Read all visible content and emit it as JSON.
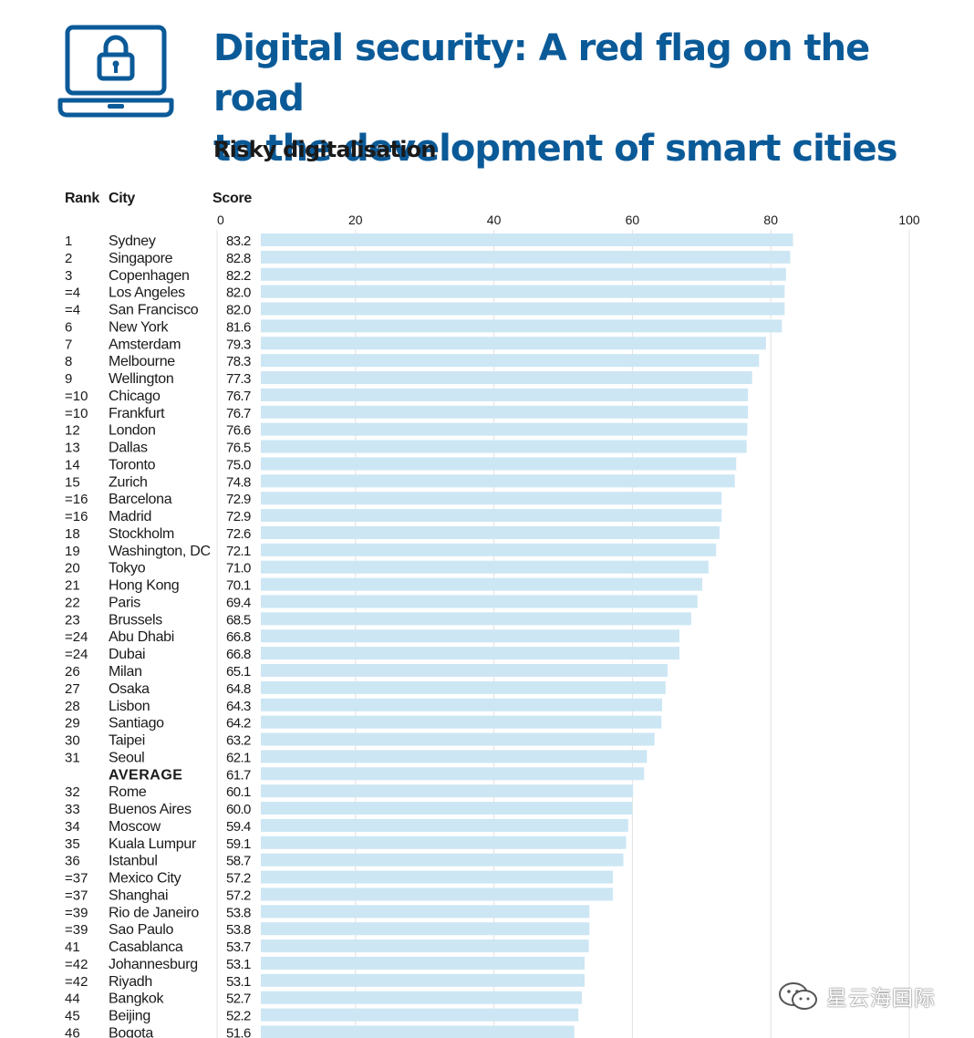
{
  "colors": {
    "brand": "#0b5a98",
    "bar": "#cce6f4",
    "grid": "#e2e2e2",
    "text": "#1a1a1a"
  },
  "icon": "laptop-lock-icon",
  "header": {
    "title_line1": "Digital security: A red flag on the road",
    "title_line2": "to the development of smart cities",
    "subtitle": "Risky digitalisation"
  },
  "columns": {
    "rank": "Rank",
    "city": "City",
    "score": "Score"
  },
  "watermark": {
    "text": "星云海国际",
    "icon": "wechat-icon"
  },
  "chart_data": {
    "type": "bar",
    "orientation": "horizontal",
    "title": "Risky digitalisation",
    "xlabel": "Score",
    "xlim": [
      0,
      100
    ],
    "xticks": [
      0,
      20,
      40,
      60,
      80,
      100
    ],
    "grid": true,
    "rows": [
      {
        "rank": "1",
        "city": "Sydney",
        "score": "83.2"
      },
      {
        "rank": "2",
        "city": "Singapore",
        "score": "82.8"
      },
      {
        "rank": "3",
        "city": "Copenhagen",
        "score": "82.2"
      },
      {
        "rank": "=4",
        "city": "Los Angeles",
        "score": "82.0"
      },
      {
        "rank": "=4",
        "city": "San Francisco",
        "score": "82.0"
      },
      {
        "rank": "6",
        "city": "New York",
        "score": "81.6"
      },
      {
        "rank": "7",
        "city": "Amsterdam",
        "score": "79.3"
      },
      {
        "rank": "8",
        "city": "Melbourne",
        "score": "78.3"
      },
      {
        "rank": "9",
        "city": "Wellington",
        "score": "77.3"
      },
      {
        "rank": "=10",
        "city": "Chicago",
        "score": "76.7"
      },
      {
        "rank": "=10",
        "city": "Frankfurt",
        "score": "76.7"
      },
      {
        "rank": "12",
        "city": "London",
        "score": "76.6"
      },
      {
        "rank": "13",
        "city": "Dallas",
        "score": "76.5"
      },
      {
        "rank": "14",
        "city": "Toronto",
        "score": "75.0"
      },
      {
        "rank": "15",
        "city": "Zurich",
        "score": "74.8"
      },
      {
        "rank": "=16",
        "city": "Barcelona",
        "score": "72.9"
      },
      {
        "rank": "=16",
        "city": "Madrid",
        "score": "72.9"
      },
      {
        "rank": "18",
        "city": "Stockholm",
        "score": "72.6"
      },
      {
        "rank": "19",
        "city": "Washington, DC",
        "score": "72.1"
      },
      {
        "rank": "20",
        "city": "Tokyo",
        "score": "71.0"
      },
      {
        "rank": "21",
        "city": "Hong Kong",
        "score": "70.1"
      },
      {
        "rank": "22",
        "city": "Paris",
        "score": "69.4"
      },
      {
        "rank": "23",
        "city": "Brussels",
        "score": "68.5"
      },
      {
        "rank": "=24",
        "city": "Abu Dhabi",
        "score": "66.8"
      },
      {
        "rank": "=24",
        "city": "Dubai",
        "score": "66.8"
      },
      {
        "rank": "26",
        "city": "Milan",
        "score": "65.1"
      },
      {
        "rank": "27",
        "city": "Osaka",
        "score": "64.8"
      },
      {
        "rank": "28",
        "city": "Lisbon",
        "score": "64.3"
      },
      {
        "rank": "29",
        "city": "Santiago",
        "score": "64.2"
      },
      {
        "rank": "30",
        "city": "Taipei",
        "score": "63.2"
      },
      {
        "rank": "31",
        "city": "Seoul",
        "score": "62.1"
      },
      {
        "rank": "",
        "city": "AVERAGE",
        "score": "61.7",
        "average": true
      },
      {
        "rank": "32",
        "city": "Rome",
        "score": "60.1"
      },
      {
        "rank": "33",
        "city": "Buenos Aires",
        "score": "60.0"
      },
      {
        "rank": "34",
        "city": "Moscow",
        "score": "59.4"
      },
      {
        "rank": "35",
        "city": "Kuala Lumpur",
        "score": "59.1"
      },
      {
        "rank": "36",
        "city": "Istanbul",
        "score": "58.7"
      },
      {
        "rank": "=37",
        "city": "Mexico City",
        "score": "57.2"
      },
      {
        "rank": "=37",
        "city": "Shanghai",
        "score": "57.2"
      },
      {
        "rank": "=39",
        "city": "Rio de Janeiro",
        "score": "53.8"
      },
      {
        "rank": "=39",
        "city": "Sao Paulo",
        "score": "53.8"
      },
      {
        "rank": "41",
        "city": "Casablanca",
        "score": "53.7"
      },
      {
        "rank": "=42",
        "city": "Johannesburg",
        "score": "53.1"
      },
      {
        "rank": "=42",
        "city": "Riyadh",
        "score": "53.1"
      },
      {
        "rank": "44",
        "city": "Bangkok",
        "score": "52.7"
      },
      {
        "rank": "45",
        "city": "Beijing",
        "score": "52.2"
      },
      {
        "rank": "46",
        "city": "Bogota",
        "score": "51.6"
      }
    ]
  }
}
